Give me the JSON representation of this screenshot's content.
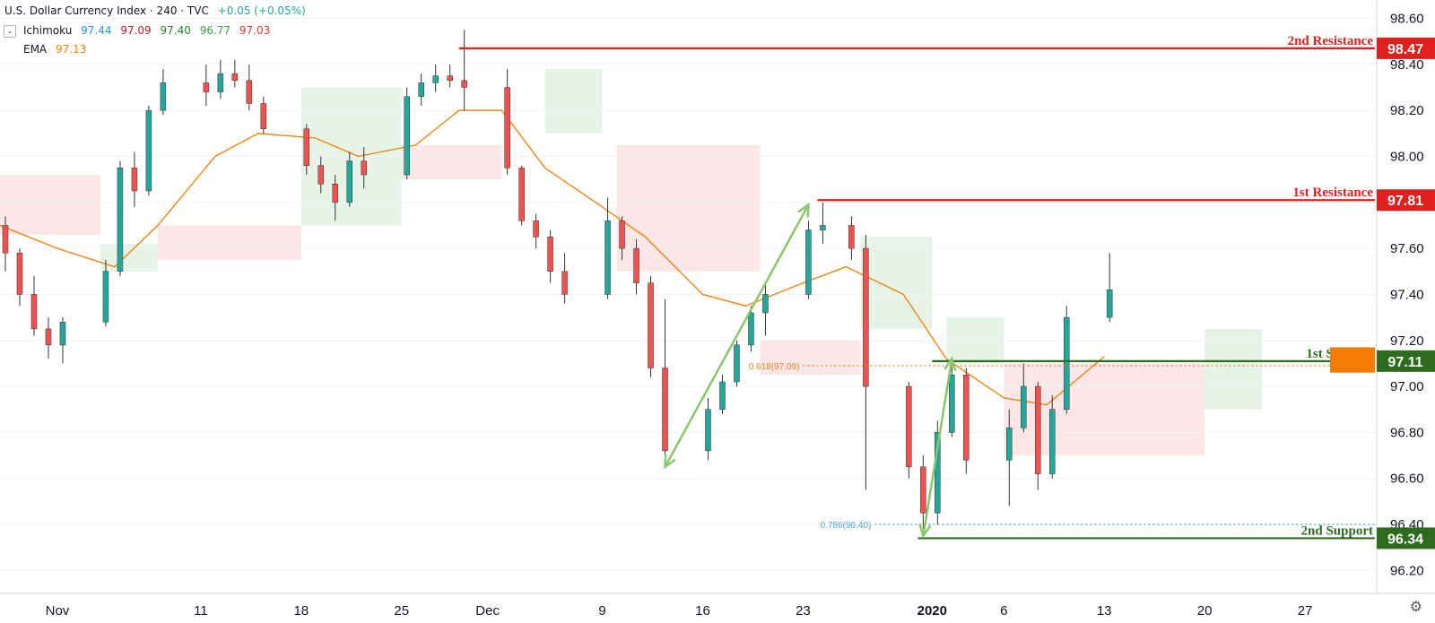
{
  "header": {
    "title": "U.S. Dollar Currency Index · 240 · TVC",
    "change": "+0.05 (+0.05%)",
    "ichimoku": {
      "label": "Ichimoku",
      "values": [
        "97.44",
        "97.09",
        "97.40",
        "96.77",
        "97.03"
      ],
      "colors": [
        "#2196f3",
        "#b71c1c",
        "#2e7d32",
        "#43a047",
        "#e53935"
      ]
    },
    "ema": {
      "label": "EMA",
      "value": "97.13",
      "color": "#f57c00"
    },
    "toggle_icon": "chevron-down-icon"
  },
  "footer": {
    "settings_icon": "gear-icon"
  },
  "chart_data": {
    "type": "candlestick",
    "y_axis": {
      "ylim": [
        96.1,
        98.68
      ],
      "ticks": [
        "96.20",
        "96.40",
        "96.60",
        "96.80",
        "97.00",
        "97.20",
        "97.40",
        "97.60",
        "97.80",
        "98.00",
        "98.20",
        "98.40",
        "98.60"
      ]
    },
    "x_axis": {
      "labels": [
        "Nov",
        "11",
        "18",
        "25",
        "Dec",
        "9",
        "16",
        "23",
        "2020",
        "6",
        "13",
        "20",
        "27"
      ],
      "label_dates": [
        "2019-11-01",
        "2019-11-11",
        "2019-11-18",
        "2019-11-25",
        "2019-12-01",
        "2019-12-09",
        "2019-12-16",
        "2019-12-23",
        "2020-01-01",
        "2020-01-06",
        "2020-01-13",
        "2020-01-20",
        "2020-01-27"
      ],
      "xlim": [
        "2019-10-28",
        "2020-02-01"
      ]
    },
    "levels": [
      {
        "name": "2nd Resistance",
        "value": 98.47,
        "label": "98.47",
        "color": "#e0201f",
        "start": "2019-11-29"
      },
      {
        "name": "1st Resistance",
        "value": 97.81,
        "label": "97.81",
        "color": "#e0201f",
        "start": "2019-12-24"
      },
      {
        "name": "1st Support",
        "value": 97.11,
        "label": "97.11",
        "color": "#2e6b1e",
        "start": "2020-01-01"
      },
      {
        "name": "2nd Support",
        "value": 96.34,
        "label": "96.34",
        "color": "#2e6b1e",
        "start": "2019-12-31"
      }
    ],
    "fibonacci": [
      {
        "label": "0.618(97.09)",
        "value": 97.09,
        "color": "#e08a1e",
        "start": "2019-12-23"
      },
      {
        "label": "0.786(96.40)",
        "value": 96.4,
        "color": "#4a9fd8",
        "start": "2019-12-28"
      }
    ],
    "series_colors": {
      "up": "#26a69a",
      "down": "#ef5350",
      "ema": "#f57c00",
      "arrows": "#8ac66b"
    },
    "ema": [
      [
        "2019-10-28",
        97.7
      ],
      [
        "2019-11-01",
        97.6
      ],
      [
        "2019-11-05",
        97.52
      ],
      [
        "2019-11-08",
        97.7
      ],
      [
        "2019-11-12",
        98.0
      ],
      [
        "2019-11-15",
        98.1
      ],
      [
        "2019-11-19",
        98.08
      ],
      [
        "2019-11-22",
        98.0
      ],
      [
        "2019-11-26",
        98.05
      ],
      [
        "2019-11-29",
        98.2
      ],
      [
        "2019-12-02",
        98.2
      ],
      [
        "2019-12-05",
        97.95
      ],
      [
        "2019-12-09",
        97.78
      ],
      [
        "2019-12-12",
        97.65
      ],
      [
        "2019-12-16",
        97.4
      ],
      [
        "2019-12-19",
        97.35
      ],
      [
        "2019-12-23",
        97.45
      ],
      [
        "2019-12-26",
        97.52
      ],
      [
        "2019-12-30",
        97.4
      ],
      [
        "2020-01-02",
        97.12
      ],
      [
        "2020-01-06",
        96.95
      ],
      [
        "2020-01-09",
        96.92
      ],
      [
        "2020-01-13",
        97.13
      ]
    ],
    "candles": [
      [
        "2019-10-28",
        97.7,
        97.74,
        97.5,
        97.58
      ],
      [
        "2019-10-29",
        97.58,
        97.6,
        97.35,
        97.4
      ],
      [
        "2019-10-30",
        97.4,
        97.48,
        97.22,
        97.25
      ],
      [
        "2019-10-31",
        97.25,
        97.3,
        97.12,
        97.18
      ],
      [
        "2019-11-01",
        97.18,
        97.3,
        97.1,
        97.28
      ],
      [
        "2019-11-04",
        97.28,
        97.55,
        97.26,
        97.5
      ],
      [
        "2019-11-05",
        97.5,
        97.98,
        97.48,
        97.95
      ],
      [
        "2019-11-06",
        97.95,
        98.02,
        97.78,
        97.85
      ],
      [
        "2019-11-07",
        97.85,
        98.22,
        97.83,
        98.2
      ],
      [
        "2019-11-08",
        98.2,
        98.38,
        98.18,
        98.32
      ],
      [
        "2019-11-11",
        98.32,
        98.4,
        98.22,
        98.28
      ],
      [
        "2019-11-12",
        98.28,
        98.42,
        98.25,
        98.36
      ],
      [
        "2019-11-13",
        98.36,
        98.42,
        98.3,
        98.33
      ],
      [
        "2019-11-14",
        98.33,
        98.4,
        98.2,
        98.23
      ],
      [
        "2019-11-15",
        98.23,
        98.26,
        98.1,
        98.12
      ],
      [
        "2019-11-18",
        98.12,
        98.14,
        97.92,
        97.96
      ],
      [
        "2019-11-19",
        97.96,
        98.0,
        97.84,
        97.88
      ],
      [
        "2019-11-20",
        97.88,
        97.92,
        97.72,
        97.8
      ],
      [
        "2019-11-21",
        97.8,
        98.02,
        97.78,
        97.98
      ],
      [
        "2019-11-22",
        97.98,
        98.04,
        97.86,
        97.92
      ],
      [
        "2019-11-25",
        97.92,
        98.3,
        97.9,
        98.26
      ],
      [
        "2019-11-26",
        98.26,
        98.36,
        98.22,
        98.32
      ],
      [
        "2019-11-27",
        98.32,
        98.4,
        98.28,
        98.35
      ],
      [
        "2019-11-28",
        98.35,
        98.4,
        98.3,
        98.33
      ],
      [
        "2019-11-29",
        98.33,
        98.55,
        98.2,
        98.3
      ],
      [
        "2019-12-02",
        98.3,
        98.38,
        97.92,
        97.95
      ],
      [
        "2019-12-03",
        97.95,
        97.96,
        97.7,
        97.72
      ],
      [
        "2019-12-04",
        97.72,
        97.75,
        97.6,
        97.65
      ],
      [
        "2019-12-05",
        97.65,
        97.68,
        97.45,
        97.5
      ],
      [
        "2019-12-06",
        97.5,
        97.58,
        97.36,
        97.4
      ],
      [
        "2019-12-09",
        97.4,
        97.82,
        97.38,
        97.72
      ],
      [
        "2019-12-10",
        97.72,
        97.74,
        97.55,
        97.6
      ],
      [
        "2019-12-11",
        97.6,
        97.64,
        97.4,
        97.45
      ],
      [
        "2019-12-12",
        97.45,
        97.48,
        97.04,
        97.08
      ],
      [
        "2019-12-13",
        97.08,
        97.38,
        96.65,
        96.72
      ],
      [
        "2019-12-16",
        96.72,
        96.95,
        96.68,
        96.9
      ],
      [
        "2019-12-17",
        96.9,
        97.05,
        96.88,
        97.02
      ],
      [
        "2019-12-18",
        97.02,
        97.2,
        97.0,
        97.18
      ],
      [
        "2019-12-19",
        97.18,
        97.35,
        97.15,
        97.32
      ],
      [
        "2019-12-20",
        97.32,
        97.45,
        97.22,
        97.4
      ],
      [
        "2019-12-23",
        97.4,
        97.72,
        97.38,
        97.68
      ],
      [
        "2019-12-24",
        97.68,
        97.8,
        97.62,
        97.7
      ],
      [
        "2019-12-26",
        97.7,
        97.74,
        97.55,
        97.6
      ],
      [
        "2019-12-27",
        97.6,
        97.66,
        96.55,
        97.0
      ],
      [
        "2019-12-30",
        97.0,
        97.02,
        96.6,
        96.65
      ],
      [
        "2019-12-31",
        96.65,
        96.7,
        96.38,
        96.45
      ],
      [
        "2020-01-01",
        96.45,
        96.85,
        96.4,
        96.8
      ],
      [
        "2020-01-02",
        96.8,
        97.1,
        96.78,
        97.05
      ],
      [
        "2020-01-03",
        97.05,
        97.08,
        96.62,
        96.68
      ],
      [
        "2020-01-06",
        96.68,
        96.9,
        96.48,
        96.82
      ],
      [
        "2020-01-07",
        96.82,
        97.1,
        96.8,
        97.0
      ],
      [
        "2020-01-08",
        97.0,
        97.02,
        96.55,
        96.62
      ],
      [
        "2020-01-09",
        96.62,
        96.96,
        96.6,
        96.9
      ],
      [
        "2020-01-10",
        96.9,
        97.35,
        96.88,
        97.3
      ],
      [
        "2020-01-13",
        97.3,
        97.58,
        97.28,
        97.42
      ]
    ]
  }
}
